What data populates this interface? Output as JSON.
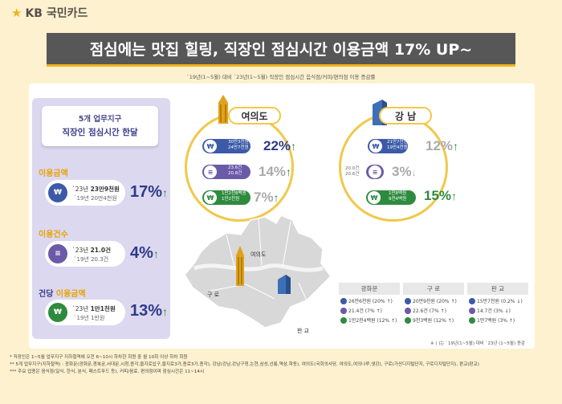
{
  "brand": {
    "logo_text": "KB 국민카드"
  },
  "banner": {
    "title": "점심에는 맛집 힐링, 직장인 점심시간 이용금액 17% UP~"
  },
  "subtitle": "`19년(1~5월) 대비 `23년(1~5월) 직장인 점심시간 음식점/커피/편의점 이용 증감률",
  "left": {
    "headline_1": "5개 업무지구",
    "headline_2": "직장인 점심시간 한달",
    "metrics": [
      {
        "title": "이용금액",
        "line1_prefix": "`23년 ",
        "line1_value": "23만9천원",
        "line2": "`19년 20만4천원",
        "pct": "17%",
        "icon": "won"
      },
      {
        "title": "이용건수",
        "line1_prefix": "`23년 ",
        "line1_value": "21.0건",
        "line2": "`19년 20.3건",
        "pct": "4%",
        "icon": "receipt"
      },
      {
        "title_prefix": "건당 ",
        "title": "이용금액",
        "line1_prefix": "`23년 ",
        "line1_value": "1만1천원",
        "line2": "`19년 1만원",
        "pct": "13%",
        "icon": "won"
      }
    ]
  },
  "yeouido": {
    "label": "여의도",
    "rows": [
      {
        "l1": "30만3천원",
        "l2": "24만7천원",
        "pct": "22%"
      },
      {
        "l1": "23.6건",
        "l2": "20.8건",
        "pct": "14%"
      },
      {
        "l1": "1만2천8백원",
        "l2": "1만2천원",
        "pct": "7%"
      }
    ]
  },
  "gangnam": {
    "label": "강 남",
    "rows": [
      {
        "l1": "21만7천원",
        "l2": "19만4천원",
        "pct": "12%"
      },
      {
        "l1": "20.0건",
        "l2": "20.6건",
        "pct": "3%"
      },
      {
        "l1": "1만8백원",
        "l2": "9천4백원",
        "pct": "15%"
      }
    ]
  },
  "map": {
    "yeouido_label": "여의도",
    "guro_label": "구 로",
    "pangyo_label": "판 교"
  },
  "table": {
    "headers": [
      "광화문",
      "구 로",
      "판 교"
    ],
    "rows": [
      [
        "26만6천원 (20% ↑)",
        "20만9천원 (20% ↑)",
        "15만7천원 (0.2% ↓)"
      ],
      [
        "21.4건 (7% ↑)",
        "22.6건 (7% ↑)",
        "14.7건 (3% ↓)"
      ],
      [
        "1만2천4백원 (12% ↑)",
        "9천3백원 (12% ↑)",
        "1만7백원 (3% ↑)"
      ]
    ],
    "note": "※ ( )는 `19년(1~5월) 대비 `23년 (1~5월) 증감"
  },
  "footnotes": {
    "f1": "* 직장인은 1~5월 업무지구 지하철역에 오전 6~10시 하차한 회원 중 월 10회 이상 하차 회원",
    "f2": "** 5개 업무지구(지하철역) : 광화문(광화문,경복궁,서대문,시청,종각,을지로입구,을지로3가,종로3가,종각), 강남(강남,강남구청,논현,삼성,선릉,역삼,학동), 여의도(국회의사당, 여의도,여의나루,샛강), 구로(가산디지털단지, 구로디지털단지), 판교(판교)",
    "f3": "*** 주요 업종은 음식점(일식, 한식, 분식, 패스트푸드 등), 커피/음료, 편의점이며 점심시간은 11~14시"
  },
  "colors": {
    "accent": "#f2b21b",
    "navy": "#2f3a8a",
    "green": "#2e8b3e",
    "banner": "#575757"
  }
}
